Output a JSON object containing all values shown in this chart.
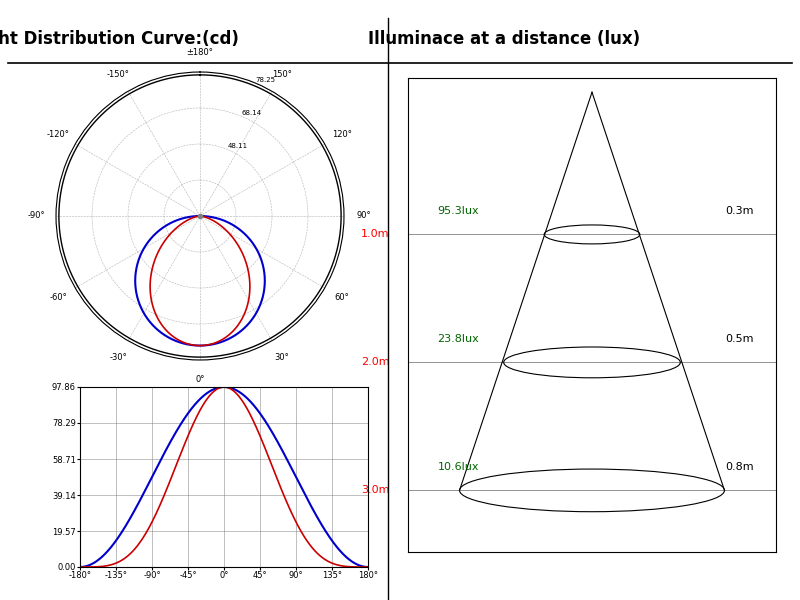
{
  "title_left": "Light Distribution Curve:(cd)",
  "title_right": "Illuminace at a distance (lux)",
  "polar_radial_labels": [
    "",
    "48.11",
    "68.14",
    "78.25"
  ],
  "bar_yticks": [
    0.0,
    19.57,
    39.14,
    58.71,
    78.29,
    97.86
  ],
  "bar_xticks": [
    -180,
    -135,
    -90,
    -45,
    0,
    45,
    90,
    135,
    180
  ],
  "lux_values": [
    "95.3lux",
    "23.8lux",
    "10.6lux"
  ],
  "lux_diameters": [
    "0.3m",
    "0.5m",
    "0.8m"
  ],
  "dist_labels": [
    "1.0m",
    "2.0m",
    "3.0m"
  ],
  "blue_color": "#0000CC",
  "red_color": "#CC0000",
  "title_fontsize": 12,
  "label_fontsize": 7
}
